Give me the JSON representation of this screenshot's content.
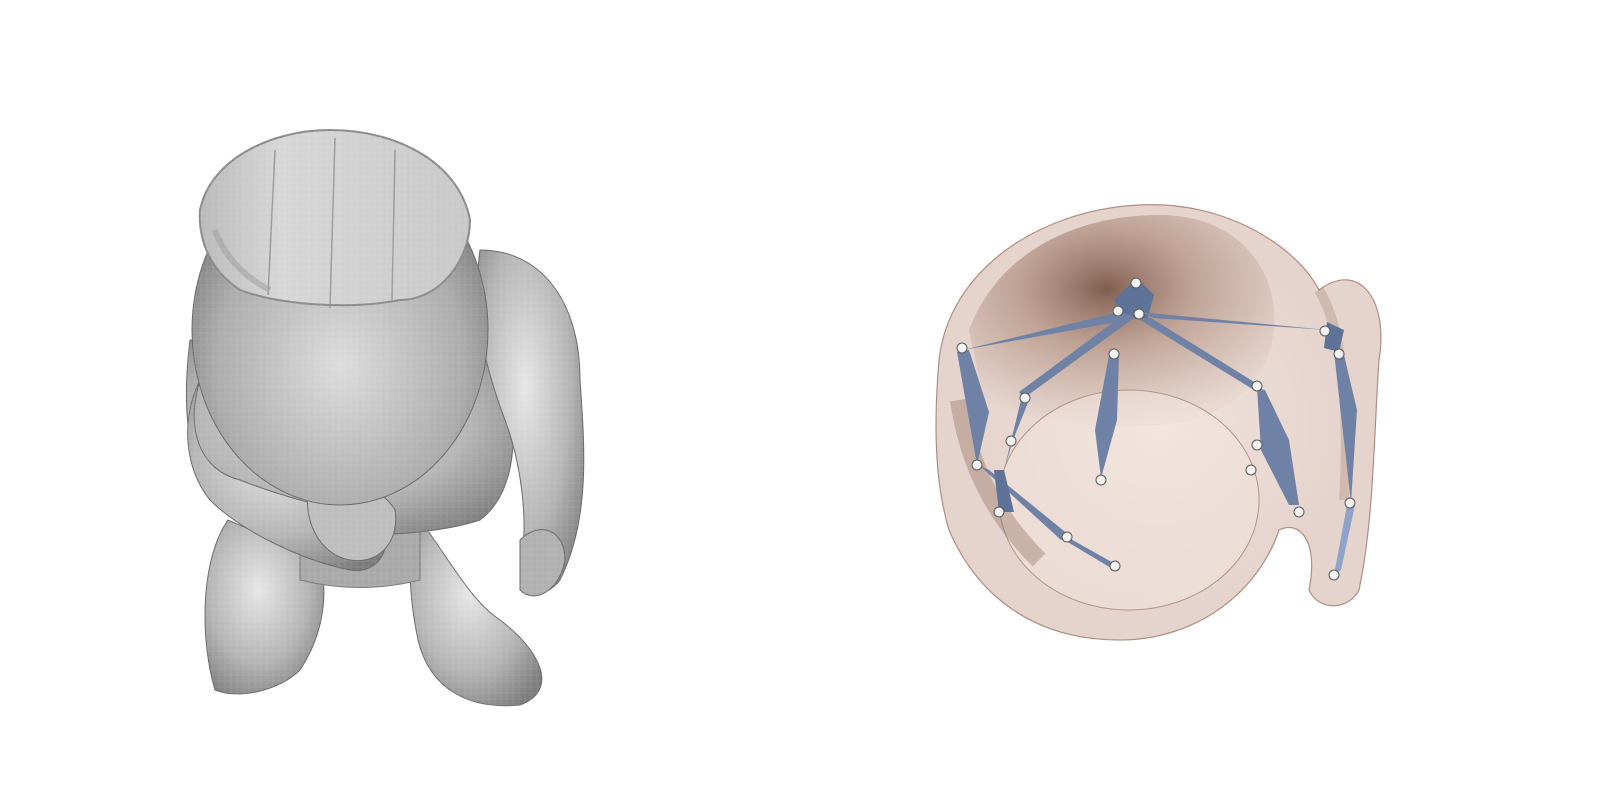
{
  "panels": [
    {
      "name": "voxel-mesh-render",
      "colors": {
        "surface": "#b8b8b8",
        "cut": "#cfcfcf",
        "shade": "#8a8a8a"
      }
    },
    {
      "name": "skeleton-overlay-render",
      "colors": {
        "volume": "#c9a89a",
        "volume_dark": "#6e4a3a",
        "bone": "#6f82a6",
        "bone_light": "#8ea3c9",
        "joint": "#f2f2f2"
      }
    }
  ]
}
